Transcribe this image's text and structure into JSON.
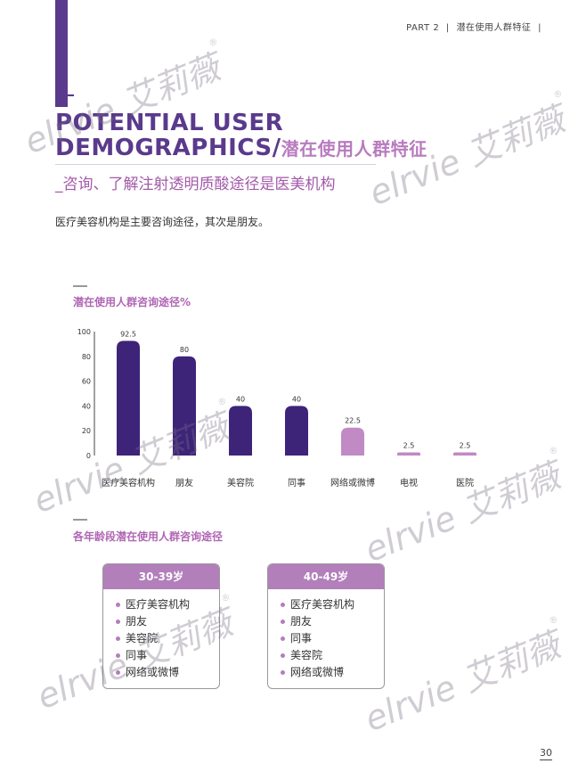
{
  "header": {
    "part": "PART 2",
    "section": "潜在使用人群特征",
    "sep": "|"
  },
  "title": {
    "plus": "+",
    "line1": "POTENTIAL USER",
    "line2": "DEMOGRAPHICS/",
    "cn": "潜在使用人群特征"
  },
  "subtitle": "_咨询、了解注射透明质酸途径是医美机构",
  "intro": "医疗美容机构是主要咨询途径，其次是朋友。",
  "chart_title": "潜在使用人群咨询途径%",
  "chart_data": {
    "type": "bar",
    "title": "潜在使用人群咨询途径%",
    "categories": [
      "医疗美容机构",
      "朋友",
      "美容院",
      "同事",
      "网络或微博",
      "电视",
      "医院"
    ],
    "values": [
      92.5,
      80,
      40,
      40,
      22.5,
      2.5,
      2.5
    ],
    "value_labels": [
      "92.5",
      "80",
      "40",
      "40",
      "22.5",
      "2.5",
      "2.5"
    ],
    "y_ticks": [
      "100",
      "80",
      "60",
      "40",
      "20",
      "0"
    ],
    "ylim": [
      0,
      100
    ],
    "colors": [
      "#3d2479",
      "#3d2479",
      "#3d2479",
      "#3d2479",
      "#c18ac4",
      "#c18ac4",
      "#c18ac4"
    ],
    "grid": false,
    "xlabel": "",
    "ylabel": ""
  },
  "age_section_title": "各年龄段潜在使用人群咨询途径",
  "age_groups": [
    {
      "label": "30-39岁",
      "items": [
        "医疗美容机构",
        "朋友",
        "美容院",
        "同事",
        "网络或微博"
      ]
    },
    {
      "label": "40-49岁",
      "items": [
        "医疗美容机构",
        "朋友",
        "同事",
        "美容院",
        "网络或微博"
      ]
    }
  ],
  "watermark": {
    "text": "elrvie 艾莉薇",
    "reg": "®"
  },
  "page_number": "30",
  "colors": {
    "primary": "#5a3a8c",
    "accent": "#b87bbf",
    "bar_dark": "#3d2479",
    "bar_light": "#c18ac4"
  }
}
